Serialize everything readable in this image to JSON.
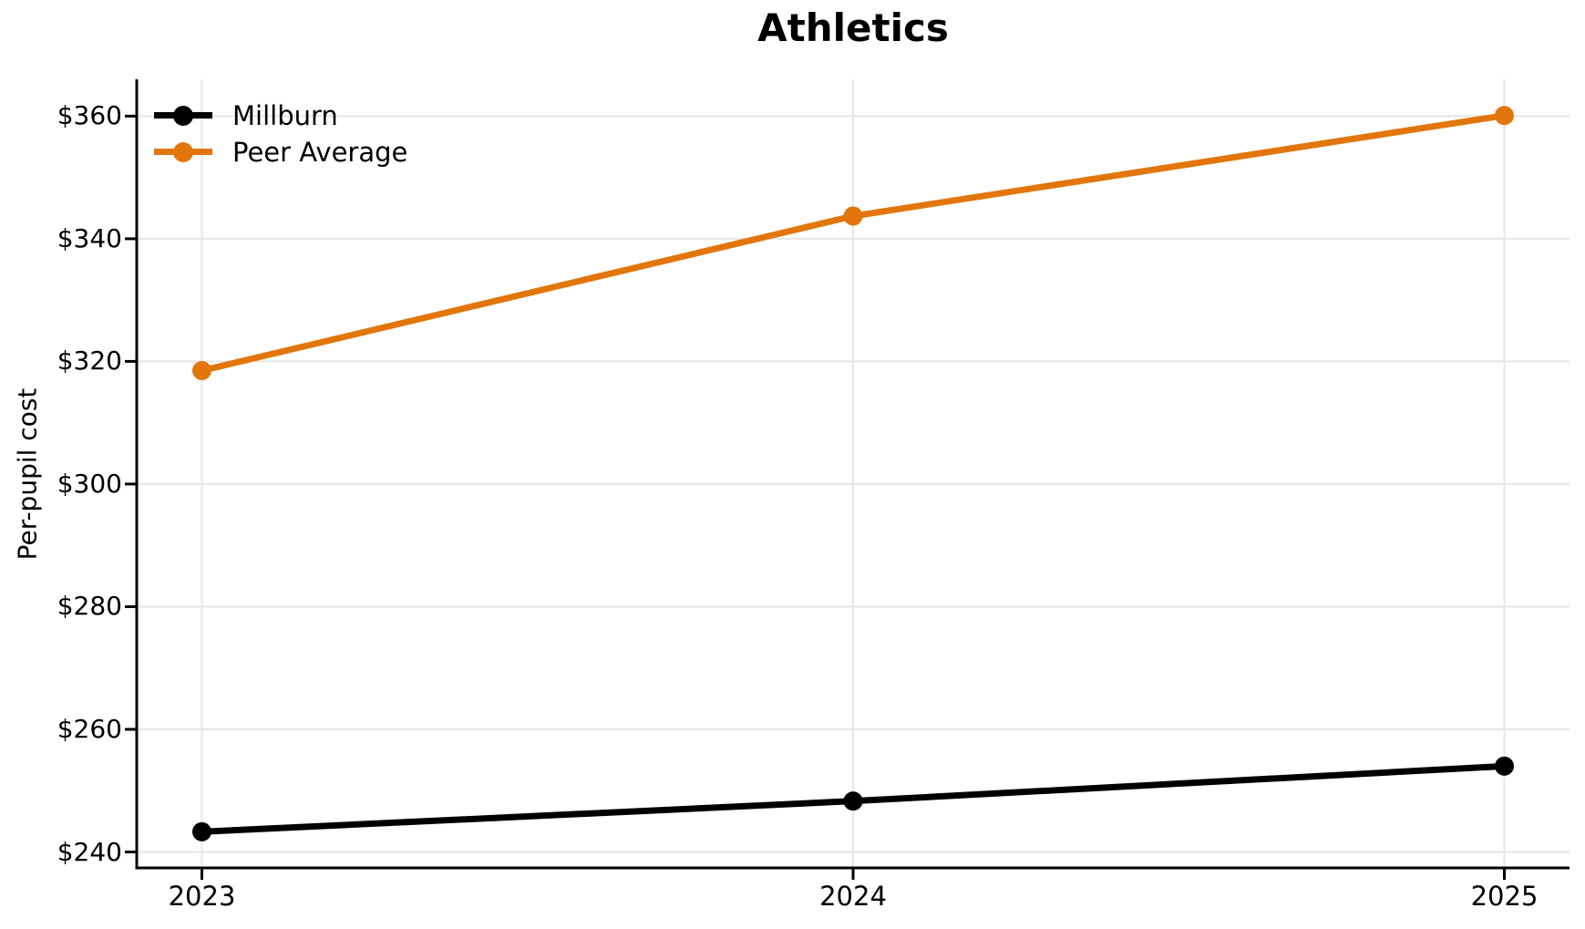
{
  "chart_data": {
    "type": "line",
    "title": "Athletics",
    "xlabel": "",
    "ylabel": "Per-pupil cost",
    "categories": [
      "2023",
      "2024",
      "2025"
    ],
    "series": [
      {
        "name": "Millburn",
        "color": "#000000",
        "values": [
          243.3,
          248.3,
          254.0
        ]
      },
      {
        "name": "Peer Average",
        "color": "#E2760C",
        "values": [
          318.5,
          343.7,
          360.1
        ]
      }
    ],
    "yticks": [
      240,
      260,
      280,
      300,
      320,
      340,
      360
    ],
    "y_tick_prefix": "$",
    "ylim": [
      237.4,
      366.0
    ],
    "grid": true,
    "grid_color": "#E6E6E6",
    "axis_color": "#000000",
    "text_color": "#000000",
    "legend_position": "upper-left",
    "marker": "circle"
  }
}
